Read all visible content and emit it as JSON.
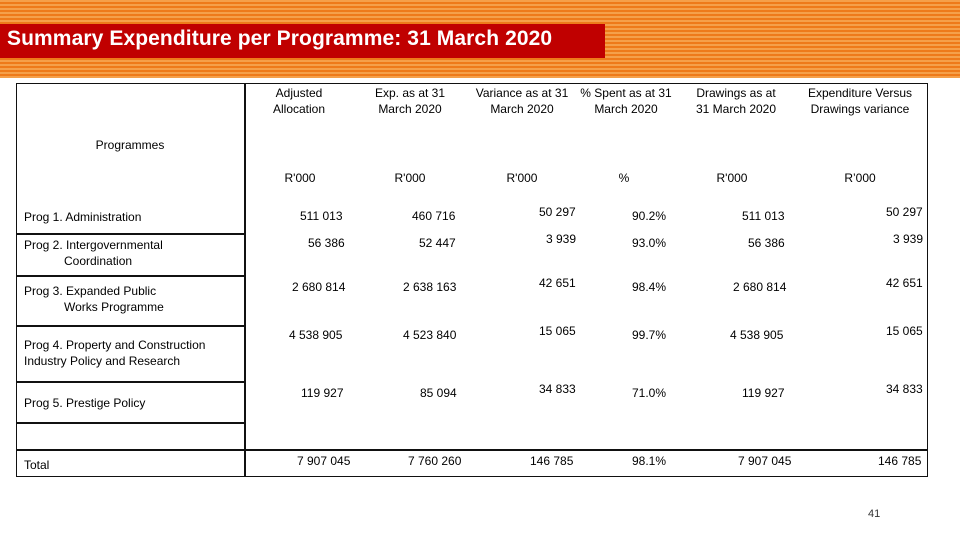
{
  "title": "Summary Expenditure per Programme: 31 March 2020",
  "table": {
    "programmes_header": "Programmes",
    "columns": [
      {
        "label": "Adjusted Allocation",
        "unit": "R'000"
      },
      {
        "label": "Exp. as at 31 March 2020",
        "unit": "R'000"
      },
      {
        "label": "Variance  as at 31 March 2020",
        "unit": "R'000"
      },
      {
        "label": "% Spent as at 31 March 2020",
        "unit": "%"
      },
      {
        "label": "Drawings as at 31 March 2020",
        "unit": "R'000"
      },
      {
        "label": "Expenditure Versus Drawings variance",
        "unit": "R’000"
      }
    ],
    "rows": [
      {
        "line1": "Prog 1. Administration",
        "line2": "",
        "values": [
          "511 013",
          "460 716",
          "50 297",
          "90.2%",
          "511 013",
          "50 297"
        ]
      },
      {
        "line1": "Prog 2. Intergovernmental",
        "line2": "Coordination",
        "values": [
          "56 386",
          "52 447",
          "3 939",
          "93.0%",
          "56 386",
          "3 939"
        ]
      },
      {
        "line1": "Prog 3. Expanded Public",
        "line2": "Works Programme",
        "values": [
          "2 680 814",
          "2 638 163",
          "42 651",
          "98.4%",
          "2 680 814",
          "42 651"
        ]
      },
      {
        "line1": "Prog 4. Property and Construction",
        "line2": "Industry Policy  and Research",
        "values": [
          "4 538 905",
          "4 523 840",
          "15 065",
          "99.7%",
          "4 538 905",
          "15 065"
        ]
      },
      {
        "line1": "Prog 5. Prestige Policy",
        "line2": "",
        "values": [
          "119 927",
          "85 094",
          "34 833",
          "71.0%",
          "119 927",
          "34 833"
        ]
      }
    ],
    "total": {
      "label": "Total",
      "values": [
        "7 907 045",
        "7 760 260",
        "146 785",
        "98.1%",
        "7 907 045",
        "146 785"
      ]
    }
  },
  "page_number": "41",
  "colors": {
    "banner_orange": "#ee7a1a",
    "title_red": "#c00000"
  }
}
